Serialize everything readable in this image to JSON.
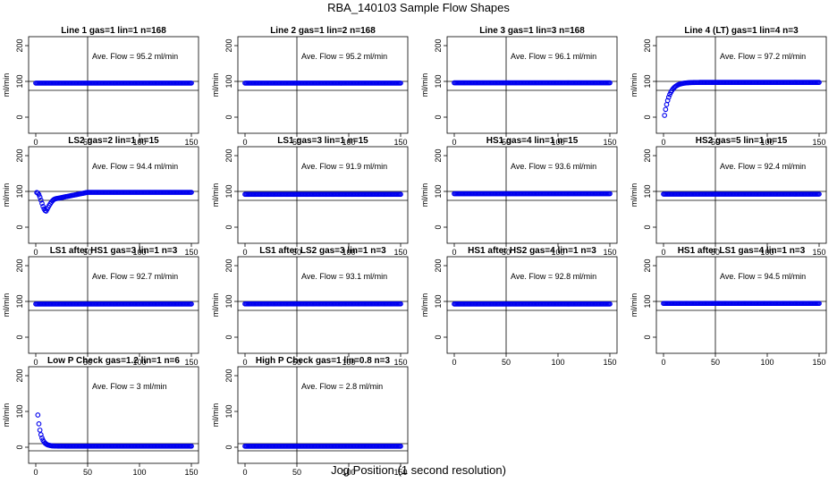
{
  "figure": {
    "title": "RBA_140103  Sample Flow Shapes",
    "xlabel": "Jog Position (1 second resolution)"
  },
  "colors": {
    "points": "#0000ee",
    "axes": "#000000"
  },
  "chart_data": [
    {
      "type": "scatter",
      "title": "Line 1 gas=1 lin=1 n=168",
      "annotation": "Ave. Flow = 95.2  ml/min",
      "ylabel": "ml/min",
      "xlim": [
        0,
        150
      ],
      "ylim": [
        -45,
        225
      ],
      "xticks": [
        0,
        50,
        100,
        150
      ],
      "yticks": [
        0,
        100,
        200
      ],
      "vline_x": 50,
      "hlines": [
        75,
        100
      ],
      "shape": {
        "kind": "flat",
        "level": 95.2,
        "x_start": 0,
        "x_end": 150
      }
    },
    {
      "type": "scatter",
      "title": "Line 2 gas=1 lin=2 n=168",
      "annotation": "Ave. Flow = 95.2  ml/min",
      "ylabel": "ml/min",
      "xlim": [
        0,
        150
      ],
      "ylim": [
        -45,
        225
      ],
      "xticks": [
        0,
        50,
        100,
        150
      ],
      "yticks": [
        0,
        100,
        200
      ],
      "vline_x": 50,
      "hlines": [
        75,
        100
      ],
      "shape": {
        "kind": "flat",
        "level": 95.2,
        "x_start": 0,
        "x_end": 150
      }
    },
    {
      "type": "scatter",
      "title": "Line 3 gas=1 lin=3 n=168",
      "annotation": "Ave. Flow = 96.1  ml/min",
      "ylabel": "ml/min",
      "xlim": [
        0,
        150
      ],
      "ylim": [
        -45,
        225
      ],
      "xticks": [
        0,
        50,
        100,
        150
      ],
      "yticks": [
        0,
        100,
        200
      ],
      "vline_x": 50,
      "hlines": [
        75,
        100
      ],
      "shape": {
        "kind": "flat",
        "level": 96.1,
        "x_start": 0,
        "x_end": 150
      }
    },
    {
      "type": "scatter",
      "title": "Line 4 (LT) gas=1 lin=4 n=3",
      "annotation": "Ave. Flow = 97.2  ml/min",
      "ylabel": "ml/min",
      "xlim": [
        0,
        150
      ],
      "ylim": [
        -45,
        225
      ],
      "xticks": [
        0,
        50,
        100,
        150
      ],
      "yticks": [
        0,
        100,
        200
      ],
      "vline_x": 50,
      "hlines": [
        75,
        100
      ],
      "shape": {
        "kind": "rise",
        "level": 97.2,
        "start": 5,
        "tau": 5,
        "x_start": 1,
        "x_end": 150
      }
    },
    {
      "type": "scatter",
      "title": "LS2 gas=2 lin=1 n=15",
      "annotation": "Ave. Flow = 94.4  ml/min",
      "ylabel": "ml/min",
      "xlim": [
        0,
        150
      ],
      "ylim": [
        -45,
        225
      ],
      "xticks": [
        0,
        50,
        100,
        150
      ],
      "yticks": [
        0,
        100,
        200
      ],
      "vline_x": 50,
      "hlines": [
        75,
        100
      ],
      "shape": {
        "kind": "dip",
        "level": 94.4,
        "start": 97,
        "dip_x": 10,
        "dip_y": 45,
        "plateau_y": 80,
        "plateau_x": 20,
        "recover_x": 50,
        "x_start": 1,
        "x_end": 150
      }
    },
    {
      "type": "scatter",
      "title": "LS1 gas=3 lin=1 n=15",
      "annotation": "Ave. Flow = 91.9  ml/min",
      "ylabel": "ml/min",
      "xlim": [
        0,
        150
      ],
      "ylim": [
        -45,
        225
      ],
      "xticks": [
        0,
        50,
        100,
        150
      ],
      "yticks": [
        0,
        100,
        200
      ],
      "vline_x": 50,
      "hlines": [
        75,
        100
      ],
      "shape": {
        "kind": "flat",
        "level": 91.9,
        "x_start": 0,
        "x_end": 150
      }
    },
    {
      "type": "scatter",
      "title": "HS1 gas=4 lin=1 n=15",
      "annotation": "Ave. Flow = 93.6  ml/min",
      "ylabel": "ml/min",
      "xlim": [
        0,
        150
      ],
      "ylim": [
        -45,
        225
      ],
      "xticks": [
        0,
        50,
        100,
        150
      ],
      "yticks": [
        0,
        100,
        200
      ],
      "vline_x": 50,
      "hlines": [
        75,
        100
      ],
      "shape": {
        "kind": "flat",
        "level": 93.6,
        "x_start": 0,
        "x_end": 150
      }
    },
    {
      "type": "scatter",
      "title": "HS2 gas=5 lin=1 n=15",
      "annotation": "Ave. Flow = 92.4  ml/min",
      "ylabel": "ml/min",
      "xlim": [
        0,
        150
      ],
      "ylim": [
        -45,
        225
      ],
      "xticks": [
        0,
        50,
        100,
        150
      ],
      "yticks": [
        0,
        100,
        200
      ],
      "vline_x": 50,
      "hlines": [
        75,
        100
      ],
      "shape": {
        "kind": "flat",
        "level": 92.4,
        "x_start": 0,
        "x_end": 150
      }
    },
    {
      "type": "scatter",
      "title": "LS1 after HS1 gas=3 lin=1 n=3",
      "annotation": "Ave. Flow = 92.7  ml/min",
      "ylabel": "ml/min",
      "xlim": [
        0,
        150
      ],
      "ylim": [
        -45,
        225
      ],
      "xticks": [
        0,
        50,
        100,
        150
      ],
      "yticks": [
        0,
        100,
        200
      ],
      "vline_x": 50,
      "hlines": [
        75,
        100
      ],
      "shape": {
        "kind": "flat",
        "level": 92.7,
        "x_start": 0,
        "x_end": 150
      }
    },
    {
      "type": "scatter",
      "title": "LS1 after LS2 gas=3 lin=1 n=3",
      "annotation": "Ave. Flow = 93.1  ml/min",
      "ylabel": "ml/min",
      "xlim": [
        0,
        150
      ],
      "ylim": [
        -45,
        225
      ],
      "xticks": [
        0,
        50,
        100,
        150
      ],
      "yticks": [
        0,
        100,
        200
      ],
      "vline_x": 50,
      "hlines": [
        75,
        100
      ],
      "shape": {
        "kind": "flat",
        "level": 93.1,
        "x_start": 0,
        "x_end": 150
      }
    },
    {
      "type": "scatter",
      "title": "HS1 after HS2 gas=4 lin=1 n=3",
      "annotation": "Ave. Flow = 92.8  ml/min",
      "ylabel": "ml/min",
      "xlim": [
        0,
        150
      ],
      "ylim": [
        -45,
        225
      ],
      "xticks": [
        0,
        50,
        100,
        150
      ],
      "yticks": [
        0,
        100,
        200
      ],
      "vline_x": 50,
      "hlines": [
        75,
        100
      ],
      "shape": {
        "kind": "flat",
        "level": 92.8,
        "x_start": 0,
        "x_end": 150
      }
    },
    {
      "type": "scatter",
      "title": "HS1 after LS1 gas=4 lin=1 n=3",
      "annotation": "Ave. Flow = 94.5  ml/min",
      "ylabel": "ml/min",
      "xlim": [
        0,
        150
      ],
      "ylim": [
        -45,
        225
      ],
      "xticks": [
        0,
        50,
        100,
        150
      ],
      "yticks": [
        0,
        100,
        200
      ],
      "vline_x": 50,
      "hlines": [
        75,
        100
      ],
      "shape": {
        "kind": "flat",
        "level": 94.5,
        "x_start": 0,
        "x_end": 150
      }
    },
    {
      "type": "scatter",
      "title": "Low P Check gas=1.2 lin=1 n=6",
      "annotation": "Ave. Flow =  3  ml/min",
      "ylabel": "ml/min",
      "xlim": [
        0,
        150
      ],
      "ylim": [
        -45,
        225
      ],
      "xticks": [
        0,
        50,
        100,
        150
      ],
      "yticks": [
        0,
        100,
        200
      ],
      "vline_x": 50,
      "hlines": [
        -10,
        10
      ],
      "shape": {
        "kind": "decay",
        "level": 3,
        "start": 90,
        "tau": 3,
        "x_start": 2,
        "x_end": 150
      }
    },
    {
      "type": "scatter",
      "title": "High P Check gas=1 lin=0.8 n=3",
      "annotation": "Ave. Flow = 2.8  ml/min",
      "ylabel": "ml/min",
      "xlim": [
        0,
        150
      ],
      "ylim": [
        -45,
        225
      ],
      "xticks": [
        0,
        50,
        100,
        150
      ],
      "yticks": [
        0,
        100,
        200
      ],
      "vline_x": 50,
      "hlines": [
        -10,
        10
      ],
      "shape": {
        "kind": "flat",
        "level": 2.8,
        "x_start": 0,
        "x_end": 150
      }
    }
  ]
}
